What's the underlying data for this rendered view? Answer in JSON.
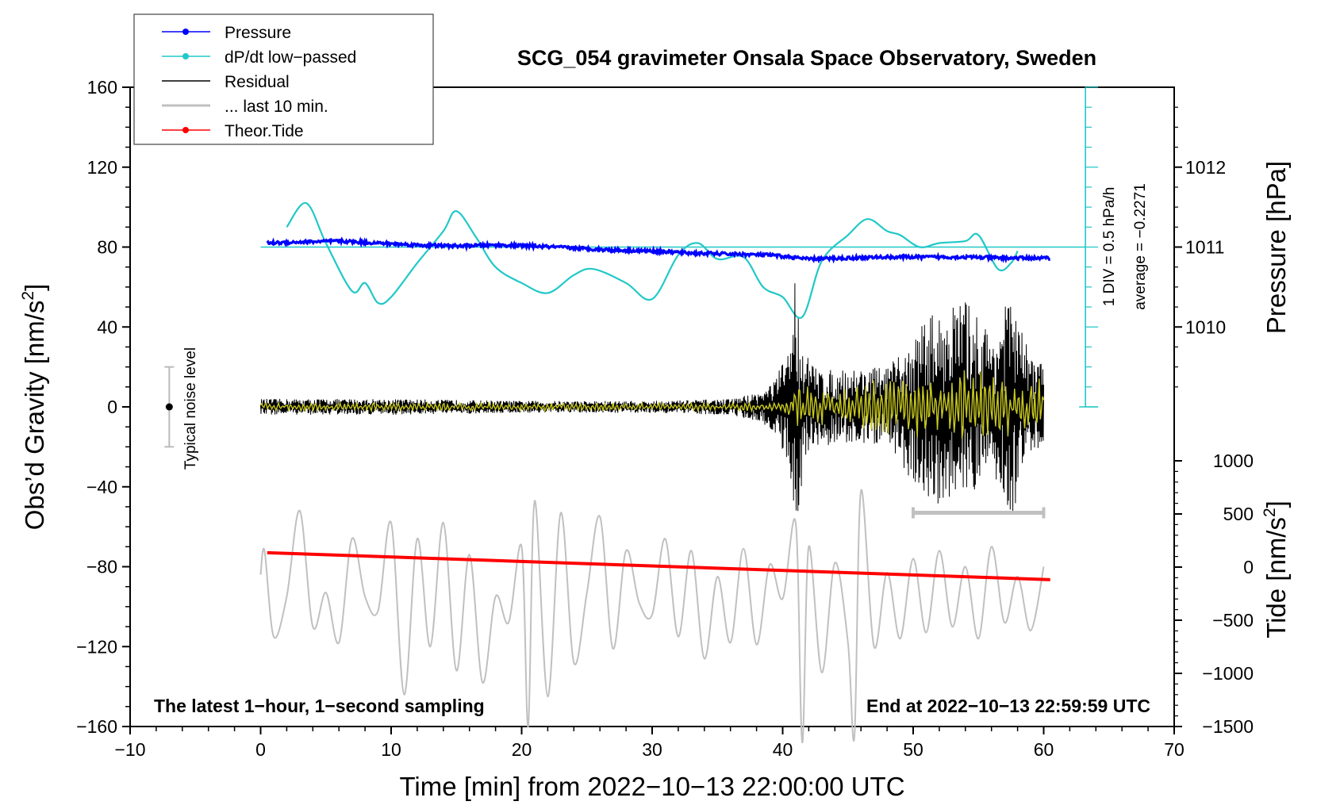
{
  "chart_data": {
    "type": "line",
    "title": "SCG_054 gravimeter Onsala Space Observatory, Sweden",
    "xlabel": "Time [min] from 2022−10−13 22:00:00 UTC",
    "ylabel_left": "Obs’d Gravity [nm/s",
    "ylabel_left_sup": "2",
    "ylabel_left_close": "]",
    "ylabel_right_pressure": "Pressure [hPa]",
    "ylabel_right_tide": "Tide [nm/s",
    "ylabel_right_tide_sup": "2",
    "ylabel_right_tide_close": "]",
    "xlim": [
      -10,
      70
    ],
    "ylim": [
      -160,
      160
    ],
    "x_ticks": [
      -10,
      0,
      10,
      20,
      30,
      40,
      50,
      60,
      70
    ],
    "x_tick_labels": [
      "−10",
      "0",
      "10",
      "20",
      "30",
      "40",
      "50",
      "60",
      "70"
    ],
    "y_ticks": [
      160,
      120,
      80,
      40,
      0,
      -40,
      -80,
      -120,
      -160
    ],
    "y_tick_labels": [
      "160",
      "120",
      "80",
      "40",
      "0",
      "−40",
      "−80",
      "−120",
      "−160"
    ],
    "pressure_axis": {
      "ticks": [
        1012,
        1011,
        1010
      ],
      "tick_labels": [
        "1012",
        "1011",
        "1010"
      ],
      "gravity_equivalent": [
        120,
        80,
        40
      ]
    },
    "tide_axis": {
      "ticks": [
        1000,
        500,
        0,
        -500,
        -1000,
        -1500
      ],
      "tick_labels": [
        "1000",
        "500",
        "0",
        "−500",
        "−1000",
        "−1500"
      ],
      "range": [
        -1500,
        1000
      ],
      "gravity_range": [
        -160,
        -27
      ]
    },
    "legend": [
      {
        "label": "Pressure",
        "color": "#0000ff",
        "marker": true
      },
      {
        "label": "dP/dt low−passed",
        "color": "#21c8c8",
        "marker": true
      },
      {
        "label": "Residual",
        "color": "#000000",
        "marker": false
      },
      {
        "label": "... last 10 min.",
        "color": "#c0c0c0",
        "marker": false
      },
      {
        "label": "Theor.Tide",
        "color": "#ff0000",
        "marker": true
      }
    ],
    "series": [
      {
        "name": "Pressure",
        "color": "#0000ff",
        "x": [
          0.5,
          3,
          6,
          9,
          12,
          15,
          18,
          21,
          24,
          27,
          30,
          33,
          36,
          39,
          42,
          45,
          48,
          51,
          54,
          57,
          60.5
        ],
        "y": [
          82,
          82.5,
          83,
          82,
          81,
          80.5,
          81,
          80.5,
          79.5,
          78.5,
          78,
          77,
          76.5,
          76,
          74,
          74.5,
          75,
          75,
          75,
          74.5,
          74.5
        ]
      },
      {
        "name": "dP/dt low−passed",
        "color": "#21c8c8",
        "x": [
          2,
          3.5,
          5,
          7,
          8,
          9,
          10,
          12,
          14,
          15,
          16.5,
          18,
          20,
          22,
          24,
          25.5,
          28,
          30,
          32,
          33.5,
          35,
          37,
          38.5,
          40,
          41.5,
          43,
          45,
          46.5,
          48,
          49,
          50.5,
          52,
          54,
          55,
          56.5,
          57.5,
          58
        ],
        "y": [
          90,
          102,
          82,
          58,
          62,
          52,
          55,
          72,
          88,
          98,
          85,
          70,
          62,
          57,
          66,
          69,
          62,
          54,
          76,
          82,
          74,
          75,
          60,
          55,
          45,
          73,
          86,
          94,
          88,
          86,
          80,
          82,
          83,
          86,
          69,
          72,
          78
        ]
      },
      {
        "name": "Residual",
        "color": "#000000",
        "x": [
          0,
          10,
          20,
          30,
          36,
          38.5,
          39.5,
          40.5,
          41,
          41.3,
          41.7,
          42.5,
          44,
          46,
          48,
          50,
          51,
          52,
          53,
          54,
          55,
          56,
          57,
          57.5,
          58,
          59,
          60
        ],
        "y_max": [
          4,
          4,
          3,
          3,
          4,
          8,
          15,
          30,
          72,
          40,
          28,
          20,
          18,
          20,
          20,
          32,
          48,
          45,
          52,
          54,
          46,
          36,
          50,
          57,
          44,
          26,
          26
        ],
        "y_min": [
          -4,
          -4,
          -3,
          -3,
          -4,
          -8,
          -15,
          -30,
          -58,
          -48,
          -30,
          -22,
          -18,
          -20,
          -18,
          -38,
          -45,
          -50,
          -50,
          -45,
          -40,
          -35,
          -50,
          -65,
          -40,
          -22,
          -20
        ]
      },
      {
        "name": "Residual low-passed",
        "color": "#c8c820",
        "x": [
          0,
          40,
          41,
          44,
          50,
          55,
          60
        ],
        "y_amp": [
          2,
          2,
          12,
          8,
          20,
          18,
          14
        ]
      },
      {
        "name": "... last 10 min.",
        "color": "#c0c0c0",
        "x": [
          0,
          0.3,
          1,
          2,
          3,
          4,
          5,
          6,
          7,
          8,
          9,
          10,
          11,
          12,
          13,
          14,
          15,
          16,
          17,
          18,
          19,
          20,
          20.5,
          21,
          22,
          23,
          24,
          25,
          26,
          27,
          28,
          29,
          30,
          31,
          32,
          33,
          34,
          35,
          36,
          37,
          38,
          39,
          40,
          41,
          41.5,
          42,
          43,
          44,
          45,
          45.5,
          46,
          47,
          48,
          49,
          50,
          51,
          52,
          53,
          54,
          55,
          56,
          57,
          58,
          59,
          60
        ],
        "y": [
          -84,
          -72,
          -115,
          -95,
          -52,
          -110,
          -93,
          -118,
          -66,
          -95,
          -102,
          -58,
          -144,
          -66,
          -120,
          -58,
          -132,
          -74,
          -138,
          -95,
          -108,
          -70,
          -160,
          -47,
          -145,
          -53,
          -128,
          -93,
          -55,
          -121,
          -72,
          -98,
          -104,
          -66,
          -115,
          -72,
          -126,
          -85,
          -118,
          -71,
          -119,
          -79,
          -96,
          -58,
          -168,
          -70,
          -133,
          -78,
          -118,
          -165,
          -42,
          -120,
          -83,
          -116,
          -76,
          -113,
          -72,
          -110,
          -80,
          -116,
          -70,
          -108,
          -85,
          -112,
          -80
        ]
      },
      {
        "name": "Theor.Tide",
        "color": "#ff0000",
        "x": [
          0.5,
          60.5
        ],
        "y": [
          -73,
          -86.5
        ]
      }
    ],
    "reference_lines": {
      "pressure_average_level": 80,
      "cyan_scale_top": 160,
      "cyan_scale_bottom": 0
    },
    "annotations": {
      "noise_label": "Typical noise level",
      "noise_bar_range": [
        -20,
        20
      ],
      "noise_bar_x": -7,
      "scale_label": "1 DIV = 0.5 hPa/h",
      "average_label": "average = −0.2271",
      "ten_min_bracket": [
        50,
        60
      ],
      "ten_min_bracket_y": -53,
      "bottom_left_note": "The latest 1−hour, 1−second sampling",
      "bottom_right_note": "End at 2022−10−13 22:59:59 UTC"
    }
  }
}
